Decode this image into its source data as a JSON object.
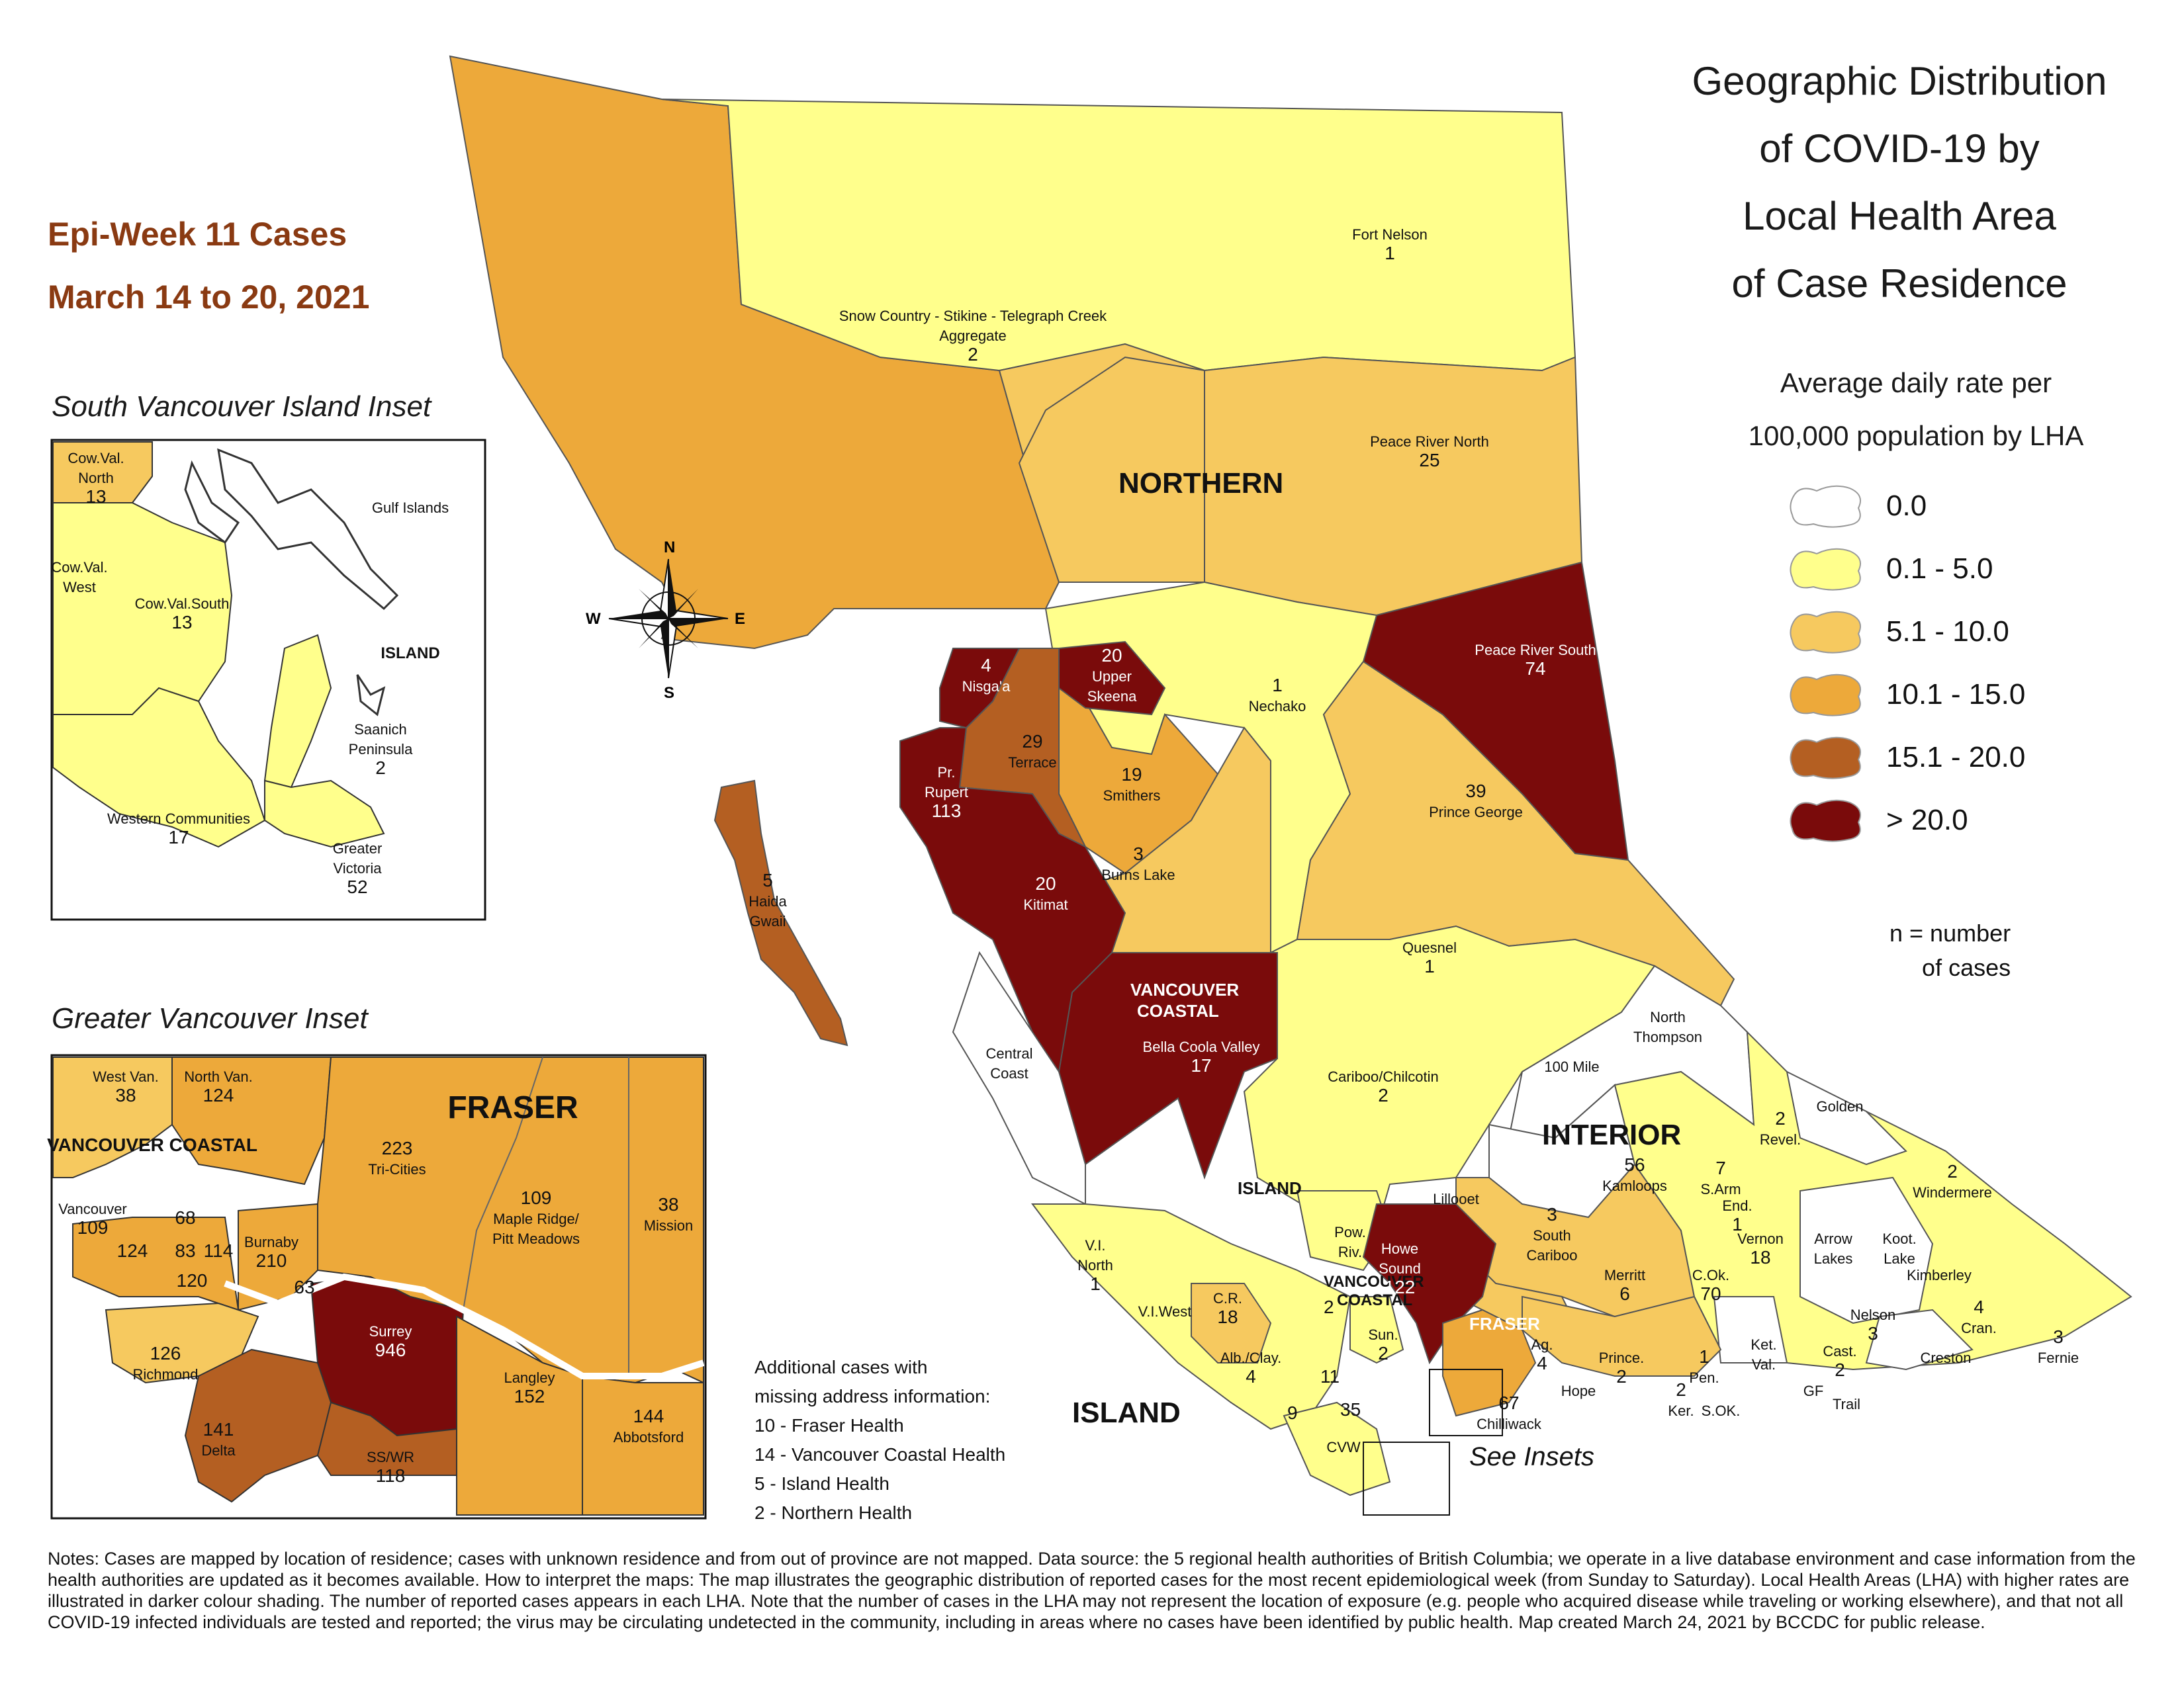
{
  "epi_week": {
    "line1": "Epi-Week 11 Cases",
    "line2": "March 14 to 20, 2021"
  },
  "title": [
    "Geographic Distribution",
    "of COVID-19 by",
    "Local Health Area",
    "of Case Residence"
  ],
  "legend": {
    "heading1": "Average daily rate per",
    "heading2": "100,000 population by LHA",
    "items": [
      {
        "label": "0.0",
        "color": "#ffffff"
      },
      {
        "label": "0.1 - 5.0",
        "color": "#ffff8c"
      },
      {
        "label": "5.1 - 10.0",
        "color": "#f6c95f"
      },
      {
        "label": "10.1 - 15.0",
        "color": "#eda93a"
      },
      {
        "label": "15.1 - 20.0",
        "color": "#b45f22"
      },
      {
        "label": "> 20.0",
        "color": "#7a0b0b"
      }
    ],
    "n_note1": "n = number",
    "n_note2": "of cases"
  },
  "compass": {
    "n": "N",
    "s": "S",
    "e": "E",
    "w": "W"
  },
  "regions": {
    "northern": "NORTHERN",
    "interior": "INTERIOR",
    "island_main": "ISLAND",
    "island_north": "ISLAND",
    "vancouver_coastal": "VANCOUVER\nCOASTAL",
    "vancouver_coastal_small": "VANCOUVER\nCOASTAL",
    "fraser_small": "FRASER"
  },
  "lha": [
    {
      "name": "Fort Nelson",
      "n": "1"
    },
    {
      "name": "Snow Country - Stikine - Telegraph Creek\nAggregate",
      "n": "2"
    },
    {
      "name": "Peace River North",
      "n": "25"
    },
    {
      "name": "Peace River South",
      "n": "74"
    },
    {
      "name": "Nisga'a",
      "n": "4"
    },
    {
      "name": "Upper\nSkeena",
      "n": "20"
    },
    {
      "name": "Nechako",
      "n": "1"
    },
    {
      "name": "Terrace",
      "n": "29"
    },
    {
      "name": "Smithers",
      "n": "19"
    },
    {
      "name": "Pr.\nRupert",
      "n": "113"
    },
    {
      "name": "Burns Lake",
      "n": "3"
    },
    {
      "name": "Prince George",
      "n": "39"
    },
    {
      "name": "Haida\nGwaii",
      "n": "5"
    },
    {
      "name": "Kitimat",
      "n": "20"
    },
    {
      "name": "Quesnel",
      "n": "1"
    },
    {
      "name": "Bella Coola Valley",
      "n": "17"
    },
    {
      "name": "Central\nCoast",
      "n": ""
    },
    {
      "name": "Cariboo/Chilcotin",
      "n": "2"
    },
    {
      "name": "North\nThompson",
      "n": ""
    },
    {
      "name": "100 Mile",
      "n": ""
    },
    {
      "name": "Revel.",
      "n": "2"
    },
    {
      "name": "Golden",
      "n": ""
    },
    {
      "name": "Kamloops",
      "n": "56"
    },
    {
      "name": "Lillooet",
      "n": ""
    },
    {
      "name": "South\nCariboo",
      "n": "3"
    },
    {
      "name": "S.Arm",
      "n": "7"
    },
    {
      "name": "End.",
      "n": "1"
    },
    {
      "name": "Windermere",
      "n": "2"
    },
    {
      "name": "Vernon",
      "n": "18"
    },
    {
      "name": "Arrow\nLakes",
      "n": ""
    },
    {
      "name": "Koot.\nLake",
      "n": ""
    },
    {
      "name": "Kimberley",
      "n": ""
    },
    {
      "name": "Howe\nSound",
      "n": "122"
    },
    {
      "name": "Pow.\nRiv.",
      "n": ""
    },
    {
      "name": "V.I.\nNorth",
      "n": "1"
    },
    {
      "name": "Merritt",
      "n": "6"
    },
    {
      "name": "C.Ok.",
      "n": "70"
    },
    {
      "name": "V.I.West",
      "n": ""
    },
    {
      "name": "C.R.",
      "n": "18"
    },
    {
      "name": "Sun.",
      "n": "2"
    },
    {
      "name": "Nelson",
      "n": "3"
    },
    {
      "name": "Cran.",
      "n": "4"
    },
    {
      "name": "Fernie",
      "n": "3"
    },
    {
      "name": "Prince.",
      "n": "2"
    },
    {
      "name": "Pen.",
      "n": "1"
    },
    {
      "name": "Ket.\nVal.",
      "n": ""
    },
    {
      "name": "Cast.",
      "n": "2"
    },
    {
      "name": "Creston",
      "n": ""
    },
    {
      "name": "Ag.",
      "n": "4"
    },
    {
      "name": "Hope",
      "n": ""
    },
    {
      "name": "Ker.",
      "n": "2"
    },
    {
      "name": "GF",
      "n": ""
    },
    {
      "name": "Trail",
      "n": ""
    },
    {
      "name": "S.OK.",
      "n": ""
    },
    {
      "name": "Alb./Clay.",
      "n": "4"
    },
    {
      "name": "CVW",
      "n": ""
    },
    {
      "name": "Chilliwack",
      "n": "67"
    }
  ],
  "small_counts": {
    "a": "11",
    "b": "35",
    "c": "9",
    "d": "2"
  },
  "south_vi_inset": {
    "title": "South Vancouver Island Inset",
    "labels": [
      {
        "name": "Cow.Val.\nNorth",
        "n": "13"
      },
      {
        "name": "Gulf Islands",
        "n": ""
      },
      {
        "name": "Cow.Val.\nWest",
        "n": ""
      },
      {
        "name": "Cow.Val.South",
        "n": "13"
      },
      {
        "name": "ISLAND",
        "n": ""
      },
      {
        "name": "Saanich\nPeninsula",
        "n": "2"
      },
      {
        "name": "Western Communities",
        "n": "17"
      },
      {
        "name": "Greater\nVictoria",
        "n": "52"
      }
    ]
  },
  "greater_van_inset": {
    "title": "Greater Vancouver Inset",
    "labels": [
      {
        "name": "West Van.",
        "n": "38"
      },
      {
        "name": "North Van.",
        "n": "124"
      },
      {
        "name": "VANCOUVER COASTAL",
        "n": ""
      },
      {
        "name": "FRASER",
        "n": ""
      },
      {
        "name": "Tri-Cities",
        "n": "223"
      },
      {
        "name": "Maple Ridge/\nPitt Meadows",
        "n": "109"
      },
      {
        "name": "Mission",
        "n": "38"
      },
      {
        "name": "Vancouver",
        "n": "109"
      },
      {
        "name": "Burnaby",
        "n": "210"
      },
      {
        "name": "Surrey",
        "n": "946"
      },
      {
        "name": "Richmond",
        "n": "126"
      },
      {
        "name": "Delta",
        "n": "141"
      },
      {
        "name": "SS/WR",
        "n": "118"
      },
      {
        "name": "Langley",
        "n": "152"
      },
      {
        "name": "Abbotsford",
        "n": "144"
      }
    ],
    "vancouver_subcounts": [
      "68",
      "124",
      "83",
      "114",
      "120"
    ],
    "burnaby_extra": "63"
  },
  "missing": {
    "lines": [
      "Additional cases with",
      "missing address information:",
      "10 - Fraser Health",
      "14 - Vancouver Coastal Health",
      "5 - Island Health",
      "2 - Northern Health"
    ]
  },
  "see_insets": "See Insets",
  "notes": "Notes: Cases are mapped by location of residence; cases with unknown residence and from out of province are not mapped. Data source: the 5 regional health authorities of British Columbia; we operate in a live database environment and case information from the health authorities are updated as it becomes available. How to interpret the maps: The map illustrates the geographic distribution of reported cases for the most recent epidemiological week (from Sunday to Saturday). Local Health Areas (LHA) with higher rates are illustrated in darker colour shading. The number of reported cases appears in each LHA. Note that the number of cases in the LHA may not represent the location of exposure (e.g. people who acquired disease while traveling or working elsewhere), and that not all COVID-19 infected individuals are tested and reported; the virus may be circulating undetected in the community, including in areas where no cases have been identified by public health. Map created March 24, 2021 by BCCDC for public release."
}
